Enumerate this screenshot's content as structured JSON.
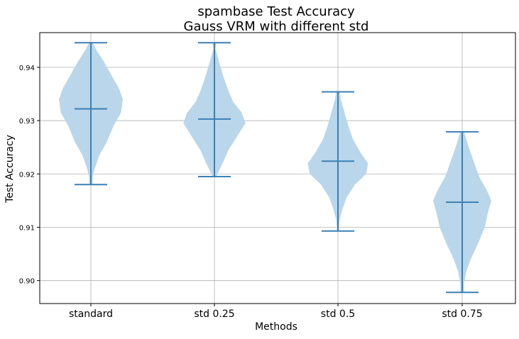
{
  "chart_data": {
    "type": "violin",
    "title_line1": "spambase Test Accuracy",
    "title_line2": "Gauss VRM with different std",
    "xlabel": "Methods",
    "ylabel": "Test Accuracy",
    "ylim": [
      0.8957,
      0.9465
    ],
    "yticks": [
      0.9,
      0.91,
      0.92,
      0.93,
      0.94
    ],
    "ytick_labels": [
      "0.90",
      "0.91",
      "0.92",
      "0.93",
      "0.94"
    ],
    "grid": true,
    "categories": [
      "standard",
      "std 0.25",
      "std 0.5",
      "std 0.75"
    ],
    "violins": [
      {
        "min": 0.918,
        "mean": 0.9322,
        "max": 0.9446,
        "profile": [
          [
            0.918,
            0.1
          ],
          [
            0.9195,
            0.1
          ],
          [
            0.921,
            0.2
          ],
          [
            0.9235,
            0.45
          ],
          [
            0.926,
            0.85
          ],
          [
            0.929,
            1.2
          ],
          [
            0.9315,
            1.6
          ],
          [
            0.934,
            1.7
          ],
          [
            0.936,
            1.5
          ],
          [
            0.9385,
            1.1
          ],
          [
            0.941,
            0.7
          ],
          [
            0.9435,
            0.25
          ],
          [
            0.9446,
            0.1
          ]
        ]
      },
      {
        "min": 0.9195,
        "mean": 0.9303,
        "max": 0.9446,
        "profile": [
          [
            0.9195,
            0.1
          ],
          [
            0.921,
            0.3
          ],
          [
            0.9225,
            0.5
          ],
          [
            0.9245,
            0.75
          ],
          [
            0.927,
            1.2
          ],
          [
            0.9295,
            1.65
          ],
          [
            0.9315,
            1.45
          ],
          [
            0.9335,
            1.0
          ],
          [
            0.9355,
            0.75
          ],
          [
            0.938,
            0.5
          ],
          [
            0.941,
            0.25
          ],
          [
            0.9435,
            0.05
          ],
          [
            0.9446,
            0.1
          ]
        ]
      },
      {
        "min": 0.9093,
        "mean": 0.9224,
        "max": 0.9354,
        "profile": [
          [
            0.9093,
            0.05
          ],
          [
            0.9115,
            0.1
          ],
          [
            0.9135,
            0.25
          ],
          [
            0.9155,
            0.45
          ],
          [
            0.918,
            0.9
          ],
          [
            0.92,
            1.5
          ],
          [
            0.922,
            1.6
          ],
          [
            0.924,
            1.2
          ],
          [
            0.9265,
            0.8
          ],
          [
            0.929,
            0.55
          ],
          [
            0.9315,
            0.35
          ],
          [
            0.934,
            0.15
          ],
          [
            0.9354,
            0.1
          ]
        ]
      },
      {
        "min": 0.8978,
        "mean": 0.9147,
        "max": 0.9279,
        "profile": [
          [
            0.8978,
            0.1
          ],
          [
            0.8995,
            0.1
          ],
          [
            0.9015,
            0.2
          ],
          [
            0.904,
            0.45
          ],
          [
            0.907,
            0.85
          ],
          [
            0.91,
            1.2
          ],
          [
            0.9125,
            1.35
          ],
          [
            0.915,
            1.55
          ],
          [
            0.917,
            1.3
          ],
          [
            0.9195,
            0.9
          ],
          [
            0.9225,
            0.6
          ],
          [
            0.925,
            0.35
          ],
          [
            0.9279,
            0.1
          ]
        ]
      }
    ],
    "colors": {
      "body": "#bad6ea",
      "line": "#3b80b6",
      "grid": "#b0b0b0"
    }
  }
}
